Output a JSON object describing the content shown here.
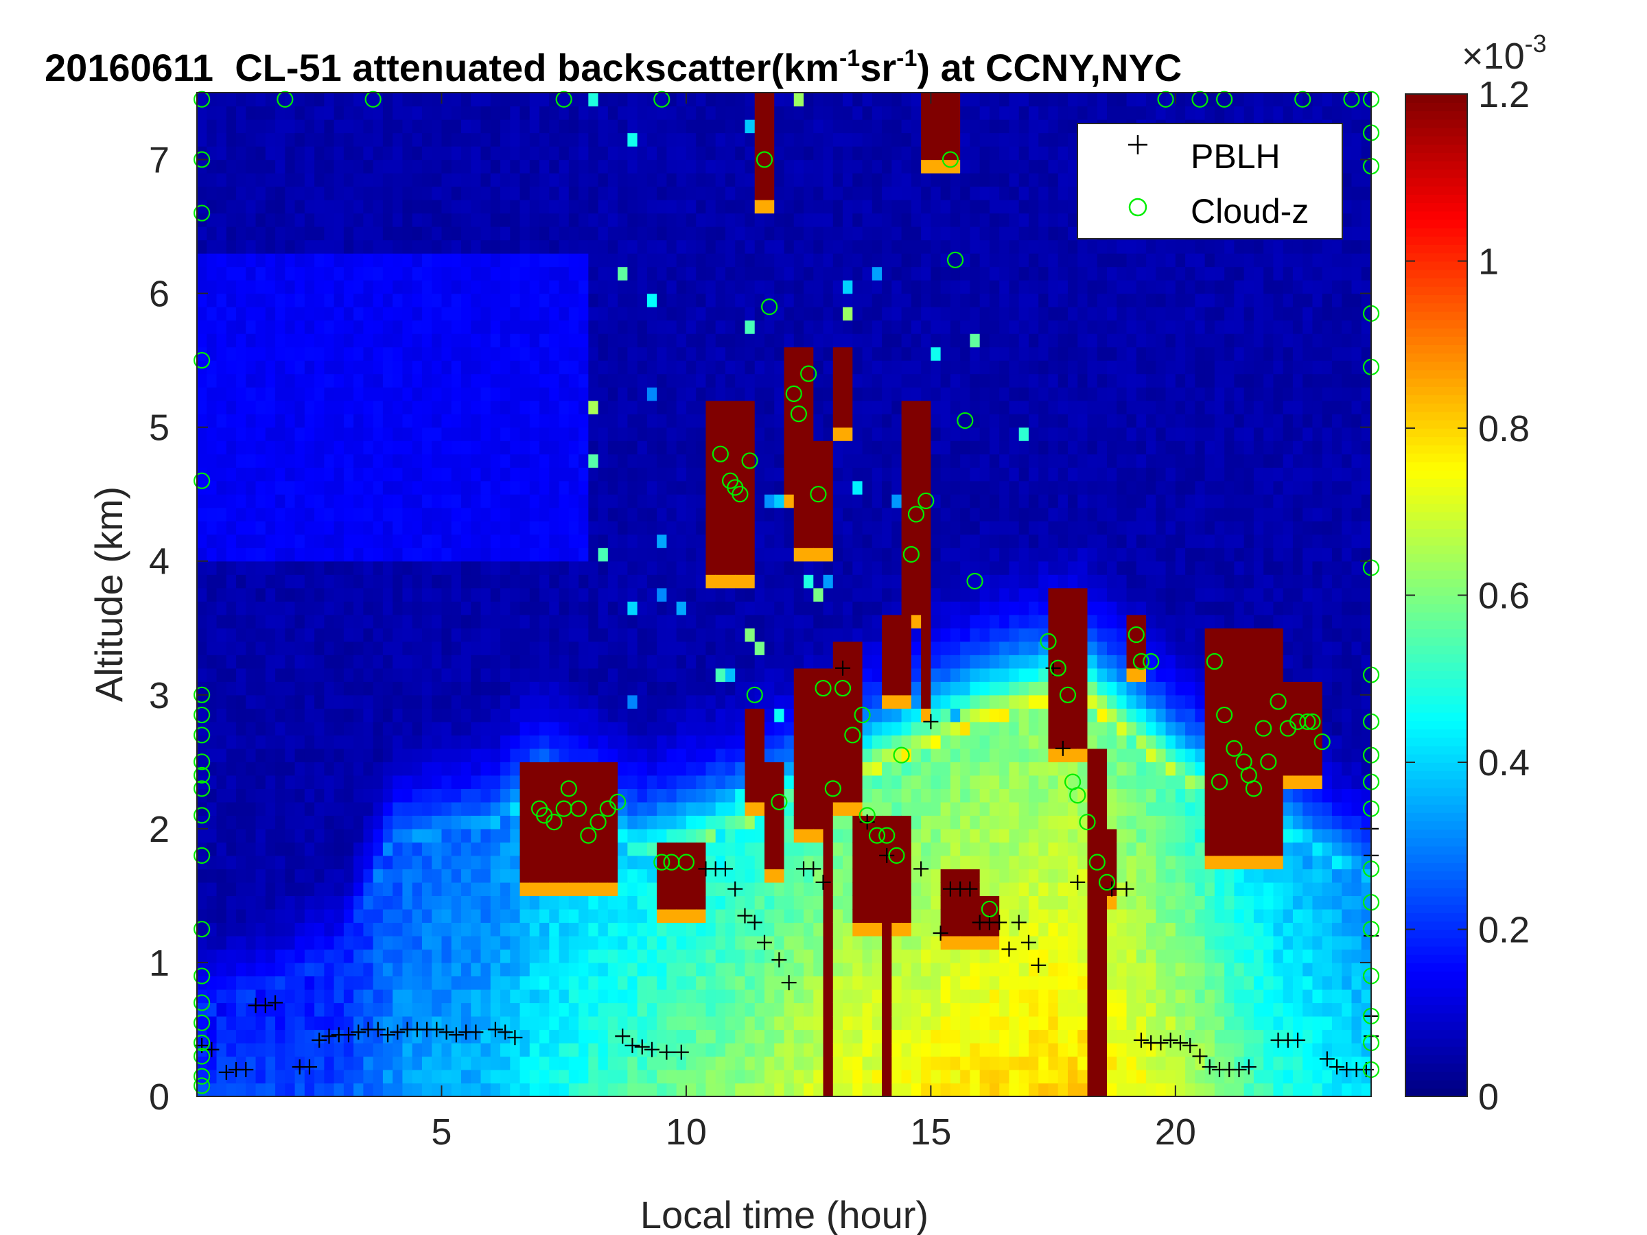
{
  "chart_data": {
    "type": "heatmap",
    "title": {
      "date": "20160611",
      "main": "CL-51 attenuated backscatter(km",
      "sup1": "-1",
      "mid": "sr",
      "sup2": "-1",
      "end": ") at CCNY,NYC"
    },
    "xlabel": "Local time (hour)",
    "ylabel": "Altitude (km)",
    "xlim": [
      0,
      24
    ],
    "ylim": [
      0,
      7.5
    ],
    "x_ticks": [
      {
        "value": 5,
        "label": "5"
      },
      {
        "value": 10,
        "label": "10"
      },
      {
        "value": 15,
        "label": "15"
      },
      {
        "value": 20,
        "label": "20"
      }
    ],
    "y_ticks": [
      {
        "value": 0,
        "label": "0"
      },
      {
        "value": 1,
        "label": "1"
      },
      {
        "value": 2,
        "label": "2"
      },
      {
        "value": 3,
        "label": "3"
      },
      {
        "value": 4,
        "label": "4"
      },
      {
        "value": 5,
        "label": "5"
      },
      {
        "value": 6,
        "label": "6"
      },
      {
        "value": 7,
        "label": "7"
      }
    ],
    "colorbar": {
      "colormap": "jet",
      "range": [
        0,
        1.2
      ],
      "exponent_label": "×10",
      "exponent_sup": "-3",
      "ticks": [
        {
          "value": 0,
          "label": "0"
        },
        {
          "value": 0.2,
          "label": "0.2"
        },
        {
          "value": 0.4,
          "label": "0.4"
        },
        {
          "value": 0.6,
          "label": "0.6"
        },
        {
          "value": 0.8,
          "label": "0.8"
        },
        {
          "value": 1.0,
          "label": "1"
        },
        {
          "value": 1.2,
          "label": "1.2"
        }
      ]
    },
    "legend": {
      "placement": "top-right",
      "entries": [
        {
          "label": "PBLH",
          "marker": "plus",
          "color": "#000000"
        },
        {
          "label": "Cloud-z",
          "marker": "circle",
          "color": "#00ee00"
        }
      ]
    },
    "field_features": {
      "background_aloft": 0.05,
      "boundary_layer": [
        {
          "x": 0,
          "top_km": 0.6,
          "level": 0.22
        },
        {
          "x": 3,
          "top_km": 1.0,
          "level": 0.24
        },
        {
          "x": 4,
          "top_km": 1.9,
          "level": 0.33
        },
        {
          "x": 6,
          "top_km": 2.0,
          "level": 0.38
        },
        {
          "x": 7,
          "top_km": 2.3,
          "level": 0.45
        },
        {
          "x": 9,
          "top_km": 1.8,
          "level": 0.55
        },
        {
          "x": 11,
          "top_km": 2.0,
          "level": 0.62
        },
        {
          "x": 13,
          "top_km": 2.3,
          "level": 0.72
        },
        {
          "x": 16,
          "top_km": 2.8,
          "level": 0.78
        },
        {
          "x": 18,
          "top_km": 3.0,
          "level": 0.8
        },
        {
          "x": 20,
          "top_km": 2.4,
          "level": 0.7
        },
        {
          "x": 22,
          "top_km": 2.0,
          "level": 0.5
        },
        {
          "x": 24,
          "top_km": 1.6,
          "level": 0.42
        }
      ],
      "cloud_blocks": [
        {
          "x0": 6.7,
          "x1": 8.7,
          "y0": 1.6,
          "y1": 2.55
        },
        {
          "x0": 9.4,
          "x1": 10.3,
          "y0": 1.45,
          "y1": 1.9
        },
        {
          "x0": 10.5,
          "x1": 11.3,
          "y0": 3.95,
          "y1": 5.15
        },
        {
          "x0": 11.3,
          "x1": 11.6,
          "y0": 2.2,
          "y1": 2.9
        },
        {
          "x0": 11.5,
          "x1": 11.75,
          "y0": 6.7,
          "y1": 7.5
        },
        {
          "x0": 11.7,
          "x1": 12.0,
          "y0": 1.7,
          "y1": 2.5
        },
        {
          "x0": 12.0,
          "x1": 12.7,
          "y0": 4.5,
          "y1": 5.6
        },
        {
          "x0": 12.2,
          "x1": 13.1,
          "y0": 4.1,
          "y1": 4.9
        },
        {
          "x0": 12.3,
          "x1": 13.0,
          "y0": 2.0,
          "y1": 3.2
        },
        {
          "x0": 12.8,
          "x1": 13.05,
          "y0": 0.0,
          "y1": 2.1
        },
        {
          "x0": 13.1,
          "x1": 13.3,
          "y0": 5.0,
          "y1": 5.6
        },
        {
          "x0": 13.0,
          "x1": 13.7,
          "y0": 2.2,
          "y1": 3.4
        },
        {
          "x0": 13.5,
          "x1": 14.6,
          "y0": 1.35,
          "y1": 2.1
        },
        {
          "x0": 14.0,
          "x1": 14.2,
          "y0": 0.0,
          "y1": 1.4
        },
        {
          "x0": 14.0,
          "x1": 14.5,
          "y0": 3.0,
          "y1": 3.6
        },
        {
          "x0": 14.4,
          "x1": 14.95,
          "y0": 3.6,
          "y1": 5.2
        },
        {
          "x0": 14.8,
          "x1": 15.05,
          "y0": 2.9,
          "y1": 3.8
        },
        {
          "x0": 14.8,
          "x1": 15.6,
          "y0": 7.0,
          "y1": 7.5
        },
        {
          "x0": 15.2,
          "x1": 15.9,
          "y0": 1.2,
          "y1": 1.7
        },
        {
          "x0": 16.1,
          "x1": 16.3,
          "y0": 1.2,
          "y1": 1.5
        },
        {
          "x0": 17.5,
          "x1": 18.2,
          "y0": 2.6,
          "y1": 3.8
        },
        {
          "x0": 18.2,
          "x1": 18.6,
          "y0": 0.0,
          "y1": 2.6
        },
        {
          "x0": 18.6,
          "x1": 18.75,
          "y0": 1.5,
          "y1": 2.0
        },
        {
          "x0": 19.1,
          "x1": 19.3,
          "y0": 3.2,
          "y1": 3.6
        },
        {
          "x0": 20.7,
          "x1": 22.1,
          "y0": 1.8,
          "y1": 3.5
        },
        {
          "x0": 22.1,
          "x1": 22.95,
          "y0": 2.4,
          "y1": 3.1
        }
      ]
    },
    "series": [
      {
        "name": "PBLH",
        "marker": "plus",
        "points": [
          [
            0.1,
            0.38
          ],
          [
            0.3,
            0.35
          ],
          [
            0.6,
            0.18
          ],
          [
            0.8,
            0.2
          ],
          [
            1.0,
            0.2
          ],
          [
            1.2,
            0.68
          ],
          [
            1.4,
            0.68
          ],
          [
            1.6,
            0.7
          ],
          [
            2.1,
            0.22
          ],
          [
            2.3,
            0.22
          ],
          [
            2.5,
            0.42
          ],
          [
            2.7,
            0.45
          ],
          [
            2.9,
            0.46
          ],
          [
            3.1,
            0.46
          ],
          [
            3.3,
            0.48
          ],
          [
            3.5,
            0.5
          ],
          [
            3.7,
            0.5
          ],
          [
            3.9,
            0.46
          ],
          [
            4.1,
            0.48
          ],
          [
            4.3,
            0.5
          ],
          [
            4.5,
            0.5
          ],
          [
            4.7,
            0.5
          ],
          [
            4.9,
            0.5
          ],
          [
            5.1,
            0.48
          ],
          [
            5.3,
            0.46
          ],
          [
            5.5,
            0.48
          ],
          [
            5.7,
            0.48
          ],
          [
            6.1,
            0.5
          ],
          [
            6.3,
            0.48
          ],
          [
            6.5,
            0.44
          ],
          [
            8.7,
            0.45
          ],
          [
            8.9,
            0.38
          ],
          [
            9.1,
            0.37
          ],
          [
            9.3,
            0.35
          ],
          [
            9.6,
            0.33
          ],
          [
            9.9,
            0.33
          ],
          [
            10.4,
            1.7
          ],
          [
            10.6,
            1.7
          ],
          [
            10.8,
            1.7
          ],
          [
            11.0,
            1.55
          ],
          [
            11.2,
            1.35
          ],
          [
            11.4,
            1.3
          ],
          [
            11.6,
            1.15
          ],
          [
            11.9,
            1.02
          ],
          [
            12.1,
            0.85
          ],
          [
            12.4,
            1.7
          ],
          [
            12.6,
            1.7
          ],
          [
            12.8,
            1.6
          ],
          [
            13.2,
            3.2
          ],
          [
            13.7,
            2.05
          ],
          [
            14.1,
            1.8
          ],
          [
            14.8,
            1.7
          ],
          [
            15.0,
            2.8
          ],
          [
            15.2,
            1.22
          ],
          [
            15.4,
            1.55
          ],
          [
            15.6,
            1.55
          ],
          [
            15.8,
            1.55
          ],
          [
            16.0,
            1.3
          ],
          [
            16.2,
            1.3
          ],
          [
            16.4,
            1.3
          ],
          [
            16.6,
            1.1
          ],
          [
            16.8,
            1.3
          ],
          [
            17.0,
            1.15
          ],
          [
            17.2,
            0.98
          ],
          [
            17.5,
            3.2
          ],
          [
            17.7,
            2.6
          ],
          [
            18.0,
            1.6
          ],
          [
            18.7,
            1.55
          ],
          [
            19.0,
            1.55
          ],
          [
            19.3,
            0.42
          ],
          [
            19.5,
            0.4
          ],
          [
            19.7,
            0.4
          ],
          [
            19.9,
            0.42
          ],
          [
            20.1,
            0.4
          ],
          [
            20.3,
            0.38
          ],
          [
            20.5,
            0.3
          ],
          [
            20.7,
            0.22
          ],
          [
            20.9,
            0.2
          ],
          [
            21.1,
            0.2
          ],
          [
            21.3,
            0.2
          ],
          [
            21.5,
            0.22
          ],
          [
            22.1,
            0.42
          ],
          [
            22.3,
            0.42
          ],
          [
            22.5,
            0.42
          ],
          [
            23.1,
            0.28
          ],
          [
            23.3,
            0.22
          ],
          [
            23.5,
            0.2
          ],
          [
            23.7,
            0.2
          ],
          [
            23.9,
            0.2
          ],
          [
            24.0,
            2.0
          ],
          [
            24.0,
            1.8
          ],
          [
            24.0,
            1.2
          ],
          [
            24.0,
            0.6
          ],
          [
            24.0,
            0.45
          ]
        ]
      },
      {
        "name": "Cloud-z",
        "marker": "circle",
        "points": [
          [
            0.1,
            7.45
          ],
          [
            0.1,
            7.0
          ],
          [
            0.1,
            6.6
          ],
          [
            0.1,
            5.5
          ],
          [
            0.1,
            4.6
          ],
          [
            0.1,
            3.0
          ],
          [
            0.1,
            2.85
          ],
          [
            0.1,
            2.7
          ],
          [
            0.1,
            2.5
          ],
          [
            0.1,
            2.4
          ],
          [
            0.1,
            2.3
          ],
          [
            0.1,
            2.1
          ],
          [
            0.1,
            1.8
          ],
          [
            0.1,
            1.25
          ],
          [
            0.1,
            0.9
          ],
          [
            0.1,
            0.7
          ],
          [
            0.1,
            0.55
          ],
          [
            0.1,
            0.4
          ],
          [
            0.1,
            0.3
          ],
          [
            0.1,
            0.15
          ],
          [
            0.1,
            0.08
          ],
          [
            7.0,
            2.15
          ],
          [
            7.1,
            2.1
          ],
          [
            7.3,
            2.05
          ],
          [
            7.5,
            2.15
          ],
          [
            7.6,
            2.3
          ],
          [
            7.8,
            2.15
          ],
          [
            8.0,
            1.95
          ],
          [
            8.2,
            2.05
          ],
          [
            8.4,
            2.15
          ],
          [
            8.6,
            2.2
          ],
          [
            9.5,
            1.75
          ],
          [
            9.7,
            1.75
          ],
          [
            10.0,
            1.75
          ],
          [
            10.7,
            4.8
          ],
          [
            10.9,
            4.6
          ],
          [
            11.0,
            4.55
          ],
          [
            11.1,
            4.5
          ],
          [
            11.3,
            4.75
          ],
          [
            11.4,
            3.0
          ],
          [
            11.6,
            7.0
          ],
          [
            11.7,
            5.9
          ],
          [
            11.9,
            2.2
          ],
          [
            12.2,
            5.25
          ],
          [
            12.3,
            5.1
          ],
          [
            12.5,
            5.4
          ],
          [
            12.7,
            4.5
          ],
          [
            12.8,
            3.05
          ],
          [
            13.0,
            2.3
          ],
          [
            13.2,
            3.05
          ],
          [
            13.4,
            2.7
          ],
          [
            13.6,
            2.85
          ],
          [
            13.7,
            2.1
          ],
          [
            13.9,
            1.95
          ],
          [
            14.1,
            1.95
          ],
          [
            14.3,
            1.8
          ],
          [
            14.4,
            2.55
          ],
          [
            14.6,
            4.05
          ],
          [
            14.7,
            4.35
          ],
          [
            14.9,
            4.45
          ],
          [
            15.4,
            7.0
          ],
          [
            15.5,
            6.25
          ],
          [
            15.7,
            5.05
          ],
          [
            15.9,
            3.85
          ],
          [
            16.2,
            1.4
          ],
          [
            17.4,
            3.4
          ],
          [
            17.6,
            3.2
          ],
          [
            17.8,
            3.0
          ],
          [
            17.9,
            2.35
          ],
          [
            18.0,
            2.25
          ],
          [
            18.2,
            2.05
          ],
          [
            18.4,
            1.75
          ],
          [
            18.6,
            1.6
          ],
          [
            19.2,
            3.45
          ],
          [
            19.3,
            3.25
          ],
          [
            19.5,
            3.25
          ],
          [
            20.8,
            3.25
          ],
          [
            20.9,
            2.35
          ],
          [
            21.0,
            2.85
          ],
          [
            21.2,
            2.6
          ],
          [
            21.4,
            2.5
          ],
          [
            21.5,
            2.4
          ],
          [
            21.6,
            2.3
          ],
          [
            21.8,
            2.75
          ],
          [
            21.9,
            2.5
          ],
          [
            22.1,
            2.95
          ],
          [
            22.3,
            2.75
          ],
          [
            22.5,
            2.8
          ],
          [
            22.7,
            2.8
          ],
          [
            22.8,
            2.8
          ],
          [
            23.0,
            2.65
          ],
          [
            21.0,
            7.45
          ],
          [
            22.6,
            7.45
          ],
          [
            23.6,
            7.45
          ],
          [
            24.0,
            7.45
          ],
          [
            24.0,
            7.2
          ],
          [
            24.0,
            6.95
          ],
          [
            24.0,
            5.85
          ],
          [
            24.0,
            5.45
          ],
          [
            24.0,
            3.95
          ],
          [
            24.0,
            3.15
          ],
          [
            24.0,
            2.8
          ],
          [
            24.0,
            2.55
          ],
          [
            24.0,
            2.35
          ],
          [
            24.0,
            2.15
          ],
          [
            24.0,
            1.7
          ],
          [
            24.0,
            1.45
          ],
          [
            24.0,
            1.25
          ],
          [
            24.0,
            0.9
          ],
          [
            24.0,
            0.6
          ],
          [
            24.0,
            0.4
          ],
          [
            24.0,
            0.2
          ],
          [
            1.8,
            7.45
          ],
          [
            3.6,
            7.45
          ],
          [
            7.5,
            7.45
          ],
          [
            9.5,
            7.45
          ],
          [
            19.8,
            7.45
          ],
          [
            20.5,
            7.45
          ]
        ]
      }
    ]
  }
}
